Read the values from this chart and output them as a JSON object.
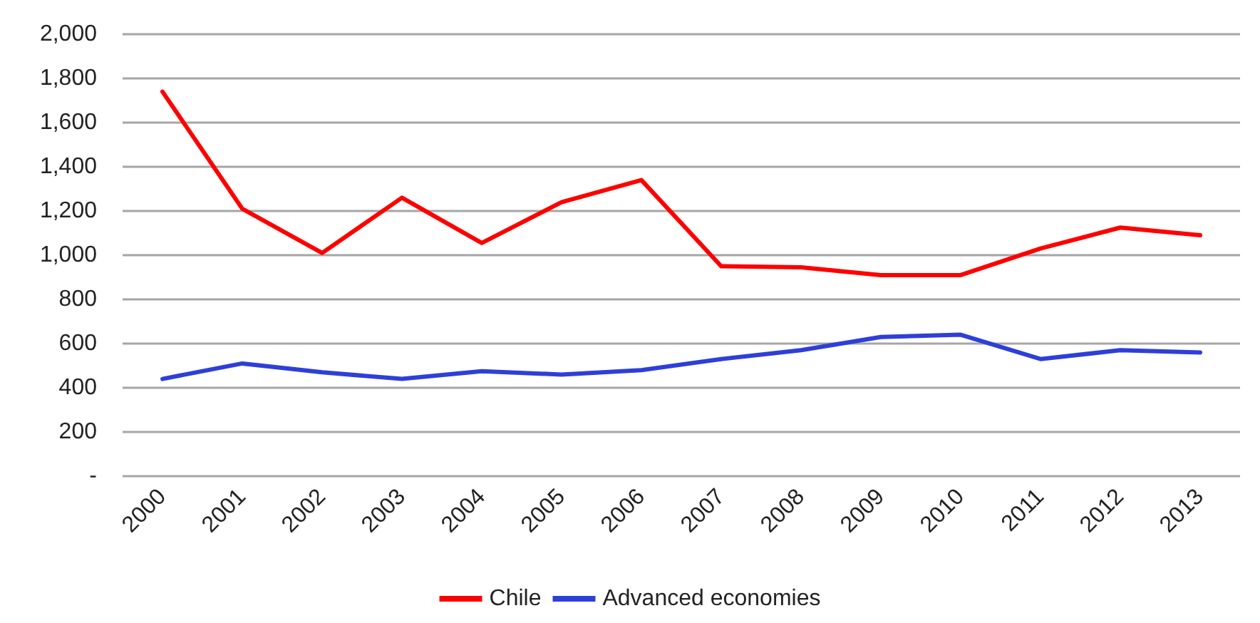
{
  "chart_data": {
    "type": "line",
    "categories": [
      "2000",
      "2001",
      "2002",
      "2003",
      "2004",
      "2005",
      "2006",
      "2007",
      "2008",
      "2009",
      "2010",
      "2011",
      "2012",
      "2013"
    ],
    "series": [
      {
        "name": "Chile",
        "color": "#ff0000",
        "values": [
          1740,
          1210,
          1010,
          1260,
          1055,
          1240,
          1340,
          950,
          945,
          910,
          910,
          1030,
          1125,
          1090
        ]
      },
      {
        "name": "Advanced economies",
        "color": "#2e3fd8",
        "values": [
          440,
          510,
          470,
          440,
          475,
          460,
          480,
          530,
          570,
          630,
          640,
          530,
          570,
          560
        ]
      }
    ],
    "ylim": [
      0,
      2000
    ],
    "yticks": [
      {
        "value": 0,
        "label": "-"
      },
      200,
      400,
      600,
      800,
      {
        "value": 1000,
        "label": "1,000"
      },
      {
        "value": 1200,
        "label": "1,200"
      },
      {
        "value": 1400,
        "label": "1,400"
      },
      {
        "value": 1600,
        "label": "1,600"
      },
      {
        "value": 1800,
        "label": "1,800"
      },
      {
        "value": 2000,
        "label": "2,000"
      }
    ],
    "grid": "y",
    "legend": "bottom",
    "marker": "none",
    "line_style": "solid"
  }
}
